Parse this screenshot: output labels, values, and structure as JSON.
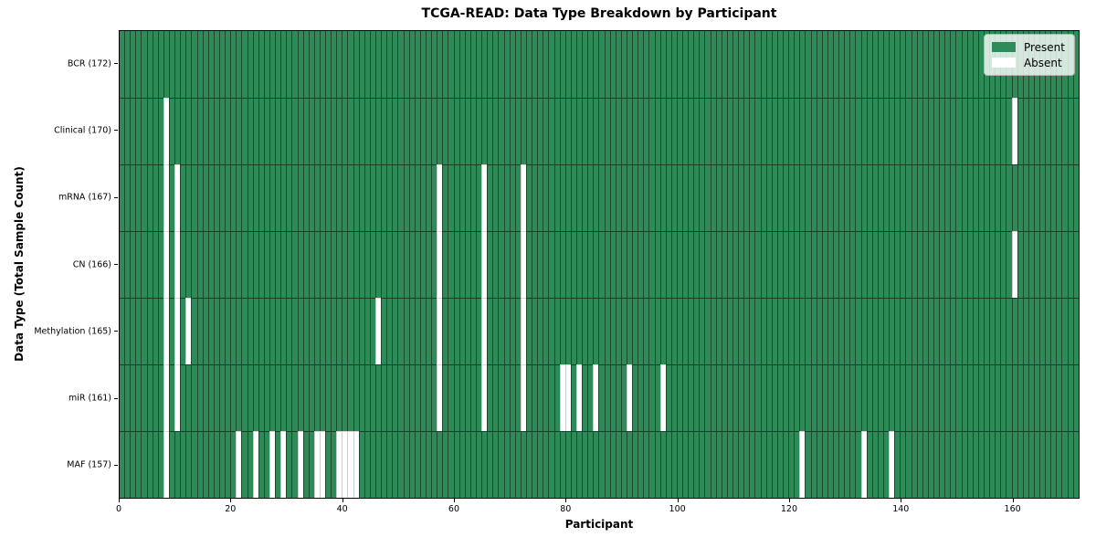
{
  "chart_data": {
    "type": "heatmap",
    "title": "TCGA-READ: Data Type Breakdown by Participant",
    "xlabel": "Participant",
    "ylabel": "Data Type (Total Sample Count)",
    "n_participants": 172,
    "x_ticks": [
      0,
      20,
      40,
      60,
      80,
      100,
      120,
      140,
      160
    ],
    "x_range": [
      0,
      172
    ],
    "grid": false,
    "colors": {
      "present": "#2E8B57",
      "absent": "#FFFFFF"
    },
    "legend": {
      "position": "upper right",
      "present_label": "Present",
      "absent_label": "Absent"
    },
    "rows": [
      {
        "key": "bcr",
        "label": "BCR (172)",
        "data_type": "BCR",
        "total_samples": 172,
        "absent_participants": []
      },
      {
        "key": "clinical",
        "label": "Clinical (170)",
        "data_type": "Clinical",
        "total_samples": 170,
        "absent_participants": [
          8,
          160
        ]
      },
      {
        "key": "mrna",
        "label": "mRNA (167)",
        "data_type": "mRNA",
        "total_samples": 167,
        "absent_participants": [
          8,
          10,
          57,
          65,
          72
        ]
      },
      {
        "key": "cn",
        "label": "CN (166)",
        "data_type": "CN",
        "total_samples": 166,
        "absent_participants": [
          8,
          10,
          57,
          65,
          72,
          160
        ]
      },
      {
        "key": "methylation",
        "label": "Methylation (165)",
        "data_type": "Methylation",
        "total_samples": 165,
        "absent_participants": [
          8,
          10,
          12,
          46,
          57,
          65,
          72
        ]
      },
      {
        "key": "mir",
        "label": "miR (161)",
        "data_type": "miR",
        "total_samples": 161,
        "absent_participants": [
          8,
          10,
          57,
          65,
          72,
          79,
          80,
          82,
          85,
          91,
          97
        ]
      },
      {
        "key": "maf",
        "label": "MAF (157)",
        "data_type": "MAF",
        "total_samples": 157,
        "absent_participants": [
          8,
          21,
          24,
          27,
          29,
          32,
          35,
          36,
          39,
          40,
          41,
          42,
          122,
          133,
          138
        ]
      }
    ]
  }
}
